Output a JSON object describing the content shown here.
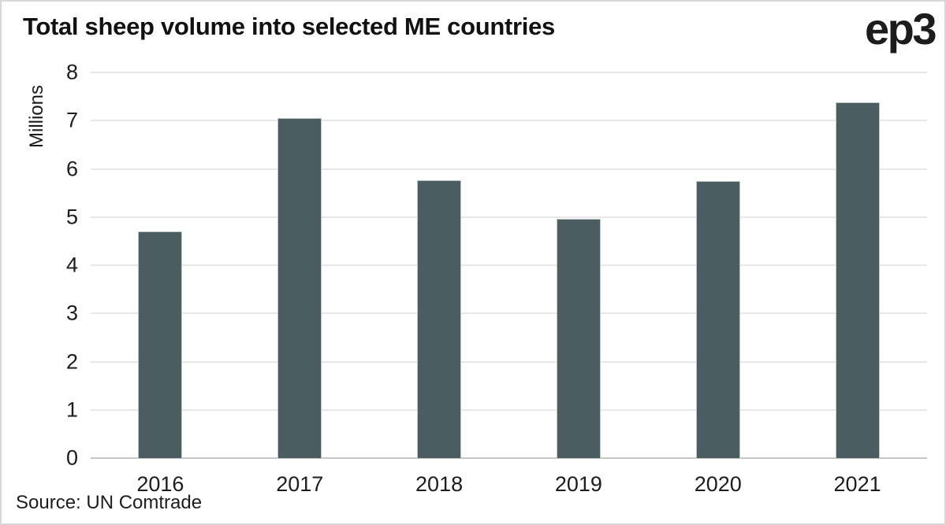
{
  "header": {
    "title": "Total sheep volume into selected ME countries",
    "logo": "ep3"
  },
  "source_note": "Source: UN Comtrade",
  "colors": {
    "bar": "#4b5d60",
    "bar_edge": "#bcc8c8",
    "gridline": "#e7e7e7",
    "baseline": "#c6c6c6",
    "text": "#1d1d1d",
    "title_text": "#111111"
  },
  "chart_data": {
    "type": "bar",
    "title": "Total sheep volume into selected ME countries",
    "categories": [
      "2016",
      "2017",
      "2018",
      "2019",
      "2020",
      "2021"
    ],
    "values": [
      4.7,
      7.06,
      5.77,
      4.96,
      5.74,
      7.38
    ],
    "xlabel": "",
    "ylabel": "Millions",
    "ylim": [
      0,
      8
    ],
    "ytick_step": 1,
    "yticks": [
      0,
      1,
      2,
      3,
      4,
      5,
      6,
      7,
      8
    ],
    "grid": "horizontal",
    "legend": "none",
    "source": "Source: UN Comtrade"
  }
}
